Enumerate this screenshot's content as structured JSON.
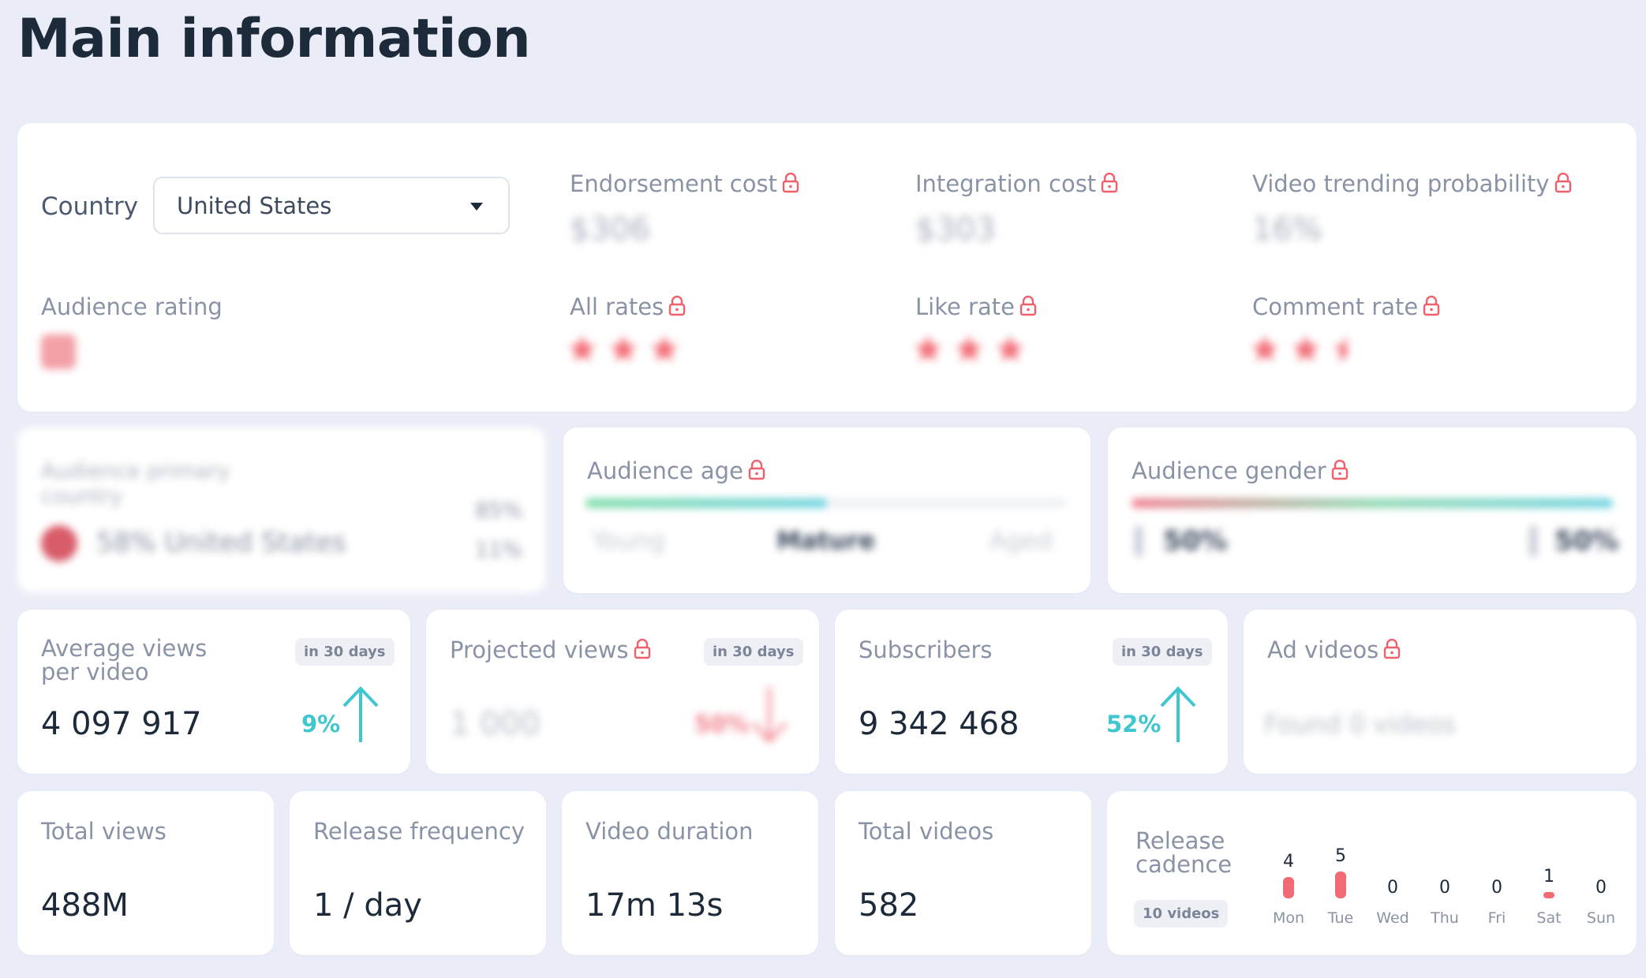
{
  "page_title": "Main information",
  "colors": {
    "accent": "#3fc6cf",
    "lock": "#f0606a",
    "background": "#eaedf7",
    "card": "#ffffff"
  },
  "country": {
    "label": "Country",
    "selected": "United States"
  },
  "top": {
    "endorsement_label": "Endorsement cost",
    "endorsement_value": "$306",
    "integration_label": "Integration cost",
    "integration_value": "$303",
    "trending_label": "Video trending probability",
    "trending_value": "16%",
    "audience_rating_label": "Audience rating",
    "all_rates_label": "All rates",
    "like_rate_label": "Like rate",
    "comment_rate_label": "Comment rate"
  },
  "audience_country": {
    "title": "Audience primary country",
    "main": "58% United States",
    "stat1": "85%",
    "stat2": "11%"
  },
  "audience_age": {
    "label": "Audience age",
    "young": "Young",
    "mature": "Mature",
    "aged": "Aged",
    "mature_fraction": 0.5
  },
  "audience_gender": {
    "label": "Audience gender",
    "male": "50%",
    "female": "50%"
  },
  "metrics": {
    "avg_views_label_1": "Average views",
    "avg_views_label_2": "per video",
    "avg_views_badge": "in 30 days",
    "avg_views_value": "4 097 917",
    "avg_views_change": "9%",
    "projected_label": "Projected views",
    "projected_badge": "in 30 days",
    "projected_value": "1 000",
    "projected_change": "50%",
    "subscribers_label": "Subscribers",
    "subscribers_badge": "in 30 days",
    "subscribers_value": "9 342 468",
    "subscribers_change": "52%",
    "ad_videos_label": "Ad videos",
    "ad_videos_value": "Found 0 videos"
  },
  "bottom": {
    "total_views_label": "Total views",
    "total_views_value": "488M",
    "release_freq_label": "Release frequency",
    "release_freq_value": "1 / day",
    "duration_label": "Video duration",
    "duration_value": "17m 13s",
    "total_videos_label": "Total videos",
    "total_videos_value": "582",
    "cadence_label_1": "Release",
    "cadence_label_2": "cadence",
    "cadence_badge": "10 videos",
    "cadence": [
      {
        "day": "Mon",
        "count": "4"
      },
      {
        "day": "Tue",
        "count": "5"
      },
      {
        "day": "Wed",
        "count": "0"
      },
      {
        "day": "Thu",
        "count": "0"
      },
      {
        "day": "Fri",
        "count": "0"
      },
      {
        "day": "Sat",
        "count": "1"
      },
      {
        "day": "Sun",
        "count": "0"
      }
    ]
  }
}
